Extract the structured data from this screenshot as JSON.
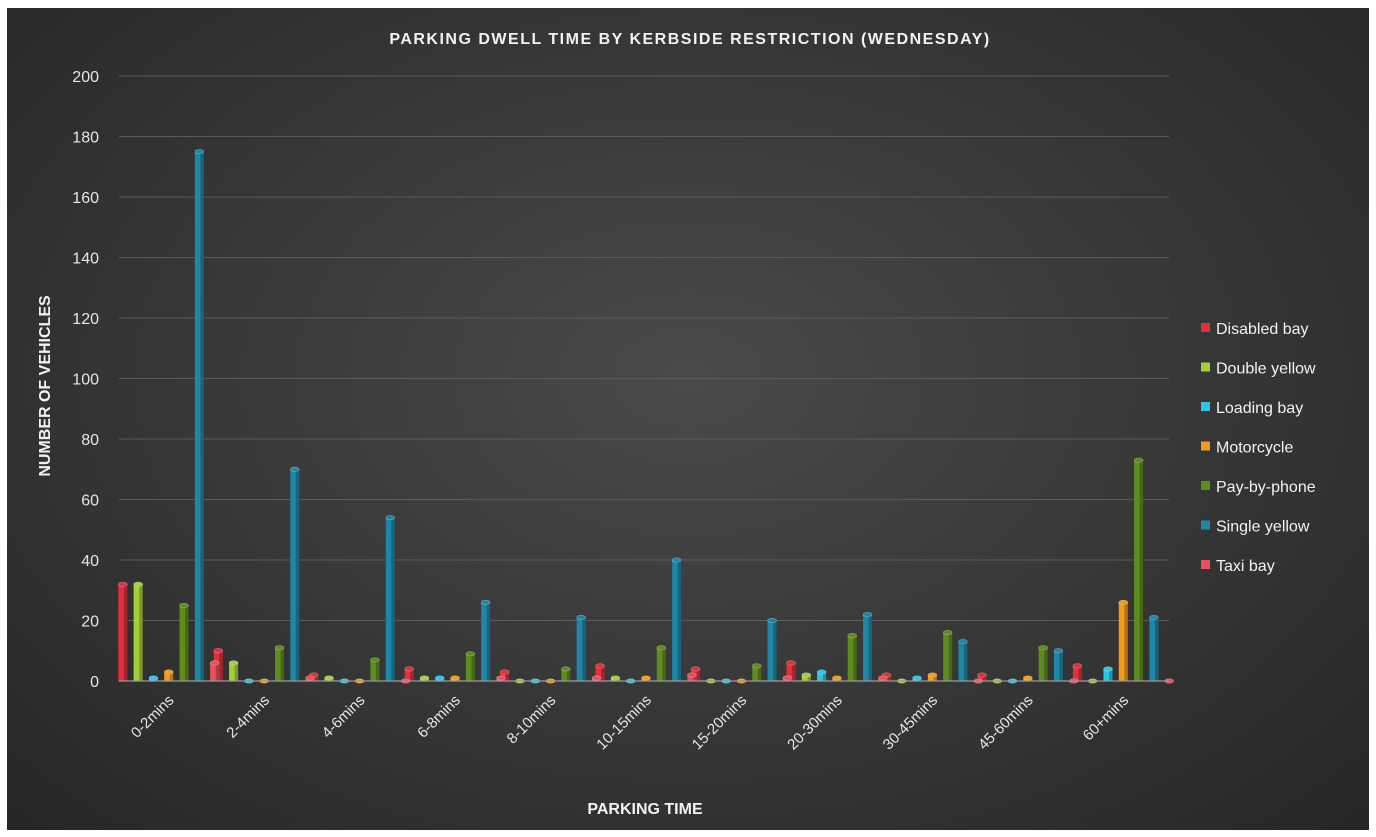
{
  "chart_data": {
    "type": "bar",
    "title": "PARKING DWELL TIME BY KERBSIDE RESTRICTION (WEDNESDAY)",
    "xlabel": "PARKING TIME",
    "ylabel": "NUMBER OF VEHICLES",
    "ylim": [
      0,
      200
    ],
    "yticks": [
      "0",
      "20",
      "40",
      "60",
      "80",
      "100",
      "120",
      "140",
      "160",
      "180",
      "200"
    ],
    "grid": true,
    "legend_position": "right",
    "categories": [
      "0-2mins",
      "2-4mins",
      "4-6mins",
      "6-8mins",
      "8-10mins",
      "10-15mins",
      "15-20mins",
      "20-30mins",
      "30-45mins",
      "45-60mins",
      "60+mins"
    ],
    "series": [
      {
        "name": "Disabled bay",
        "color": "#e0303c",
        "values": [
          32,
          10,
          2,
          4,
          3,
          5,
          4,
          6,
          2,
          2,
          5
        ]
      },
      {
        "name": "Double yellow",
        "color": "#a4cf3c",
        "values": [
          32,
          6,
          1,
          1,
          0,
          1,
          0,
          2,
          0,
          0,
          0
        ]
      },
      {
        "name": "Loading bay",
        "color": "#2ec4e6",
        "values": [
          1,
          0,
          0,
          1,
          0,
          0,
          0,
          3,
          1,
          0,
          4
        ]
      },
      {
        "name": "Motorcycle",
        "color": "#f39c1c",
        "values": [
          3,
          0,
          0,
          1,
          0,
          1,
          0,
          1,
          2,
          1,
          26
        ]
      },
      {
        "name": "Pay-by-phone",
        "color": "#5e8c1e",
        "values": [
          25,
          11,
          7,
          9,
          4,
          11,
          5,
          15,
          16,
          11,
          73
        ]
      },
      {
        "name": "Single yellow",
        "color": "#1f86a6",
        "values": [
          175,
          70,
          54,
          26,
          21,
          40,
          20,
          22,
          13,
          10,
          21
        ]
      },
      {
        "name": "Taxi bay",
        "color": "#e8505c",
        "values": [
          6,
          1,
          0,
          1,
          1,
          2,
          1,
          1,
          0,
          0,
          0
        ]
      }
    ]
  }
}
